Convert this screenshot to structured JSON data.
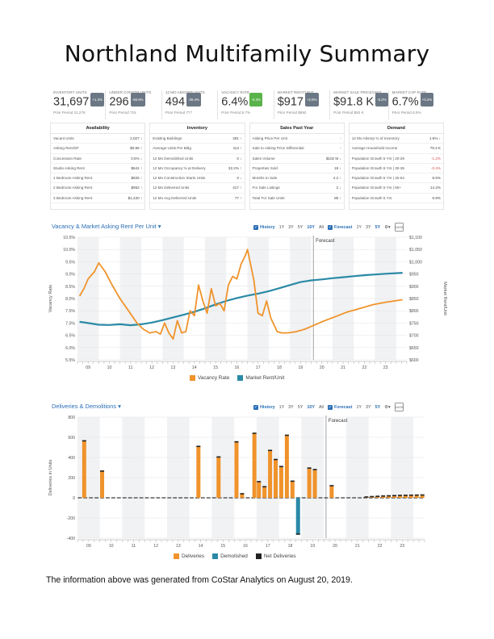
{
  "document": {
    "title": "Northland Multifamily Summary",
    "footer": "The information above was generated from CoStar Analytics on August 20, 2019."
  },
  "kpis": [
    {
      "label": "INVENTORY UNITS",
      "value": "31,697",
      "badge": "+1.3%",
      "prior": "Prior Period 31,278",
      "badge_color": "#6b7784"
    },
    {
      "label": "UNDER CONSTR UNITS",
      "value": "296",
      "badge": "-58.6%",
      "prior": "Prior Period 715",
      "badge_color": "#6b7784"
    },
    {
      "label": "12 MO ABSORP UNITS",
      "value": "494",
      "badge": "-36.4%",
      "prior": "Prior Period 777",
      "badge_color": "#6b7784"
    },
    {
      "label": "VACANCY RATE",
      "value": "6.4%",
      "badge": "-0.3%",
      "prior": "Prior Period 6.7%",
      "badge_color": "#5ab34a"
    },
    {
      "label": "MARKET RENT/UNIT",
      "value": "$917",
      "badge": "+2.8%",
      "prior": "Prior Period $892",
      "badge_color": "#6b7784"
    },
    {
      "label": "MARKET SALE PRICE/UNIT",
      "value": "$91.8 K",
      "badge": "-0.2%",
      "prior": "Prior Period $92 K",
      "badge_color": "#6b7784"
    },
    {
      "label": "MARKET CAP RATE",
      "value": "6.7%",
      "badge": "+0.2%",
      "prior": "Prior Period 6.5%",
      "badge_color": "#6b7784"
    }
  ],
  "panels": [
    {
      "title": "Availability",
      "rows": [
        {
          "label": "Vacant Units",
          "value": "2,027 ↓"
        },
        {
          "label": "Asking Rent/SF",
          "value": "$0.86 ↑"
        },
        {
          "label": "Concession Rate",
          "value": "0.5% ↓"
        },
        {
          "label": "Studio Asking Rent",
          "value": "$641 ↑"
        },
        {
          "label": "1 Bedroom Asking Rent",
          "value": "$825 ↑"
        },
        {
          "label": "2 Bedroom Asking Rent",
          "value": "$952 ↑"
        },
        {
          "label": "3 Bedroom Asking Rent",
          "value": "$1,220 ↑"
        }
      ]
    },
    {
      "title": "Inventory",
      "rows": [
        {
          "label": "Existing Buildings",
          "value": "281 ↑"
        },
        {
          "label": "Average Units Per Bldg",
          "value": "113 ↑"
        },
        {
          "label": "12 Mo Demolished Units",
          "value": "0 ↓"
        },
        {
          "label": "12 Mo Occupancy % at Delivery",
          "value": "32.2% ↑"
        },
        {
          "label": "12 Mo Construction Starts Units",
          "value": "0 ↓"
        },
        {
          "label": "12 Mo Delivered Units",
          "value": "417 ↑"
        },
        {
          "label": "12 Mo Avg Delivered Units",
          "value": "77 ↑"
        }
      ]
    },
    {
      "title": "Sales Past Year",
      "rows": [
        {
          "label": "Asking Price Per Unit",
          "value": "-"
        },
        {
          "label": "Sale to Asking Price Differential",
          "value": "-"
        },
        {
          "label": "Sales Volume",
          "value": "$102 M ↓"
        },
        {
          "label": "Properties Sold",
          "value": "19 ↓"
        },
        {
          "label": "Months to Sale",
          "value": "4.2 ↑"
        },
        {
          "label": "For Sale Listings",
          "value": "2 ↓"
        },
        {
          "label": "Total For Sale Units",
          "value": "85 ↑"
        }
      ]
    },
    {
      "title": "Demand",
      "rows": [
        {
          "label": "12 Mo Absorp % of Inventory",
          "value": "1.6% ↓"
        },
        {
          "label": "Average Household Income",
          "value": "79.3 K"
        },
        {
          "label": "Population Growth 5 Yrs | 20-29",
          "value": "-1.2%",
          "neg": true
        },
        {
          "label": "Population Growth 5 Yrs | 30-39",
          "value": "-0.4%",
          "neg": true
        },
        {
          "label": "Population Growth 5 Yrs | 40-54",
          "value": "8.5%"
        },
        {
          "label": "Population Growth 5 Yrs | 55+",
          "value": "14.2%"
        },
        {
          "label": "Population Growth 5 Yrs",
          "value": "6.9%"
        }
      ]
    }
  ],
  "chart_controls": {
    "history": "History",
    "forecast": "Forecast",
    "all": "All",
    "hist_ranges": [
      "1Y",
      "3Y",
      "5Y",
      "10Y"
    ],
    "fc_ranges": [
      "1Y",
      "3Y",
      "5Y"
    ],
    "data_icon": "DATA",
    "check_icon": "checkbox-icon",
    "gear_icon": "gear-icon"
  },
  "chart_data": [
    {
      "type": "line",
      "title": "Vacancy & Market Asking Rent Per Unit ▾",
      "ylabel": "Vacancy Rate",
      "y2label": "Market Rent/Unit",
      "forecast_label": "Forecast",
      "ylim": [
        5.5,
        10.5
      ],
      "y2lim": [
        600,
        1100
      ],
      "yticks": [
        "5.5%",
        "6.0%",
        "6.5%",
        "7.0%",
        "7.5%",
        "8.0%",
        "8.5%",
        "9.0%",
        "9.5%",
        "10.0%",
        "10.5%"
      ],
      "y2ticks": [
        "$600",
        "$650",
        "$700",
        "$750",
        "$800",
        "$850",
        "$900",
        "$950",
        "$1,000",
        "$1,050",
        "$1,100"
      ],
      "xticks": [
        "09",
        "10",
        "11",
        "12",
        "13",
        "14",
        "15",
        "16",
        "17",
        "18",
        "19",
        "20",
        "21",
        "22",
        "23"
      ],
      "xlim": [
        2008.5,
        2024.0
      ],
      "forecast_x": 2019.6,
      "colors": {
        "vacancy": "#f0932b",
        "rent": "#2a8aa6"
      },
      "series": [
        {
          "name": "Vacancy Rate",
          "axis": "left",
          "points": [
            [
              2008.6,
              8.1
            ],
            [
              2008.8,
              8.4
            ],
            [
              2009.0,
              8.8
            ],
            [
              2009.3,
              9.1
            ],
            [
              2009.5,
              9.45
            ],
            [
              2009.8,
              9.1
            ],
            [
              2010.1,
              8.6
            ],
            [
              2010.5,
              8.0
            ],
            [
              2010.9,
              7.5
            ],
            [
              2011.3,
              7.0
            ],
            [
              2011.6,
              6.75
            ],
            [
              2011.9,
              6.6
            ],
            [
              2012.2,
              6.65
            ],
            [
              2012.4,
              6.55
            ],
            [
              2012.6,
              7.0
            ],
            [
              2012.8,
              6.6
            ],
            [
              2013.0,
              6.35
            ],
            [
              2013.2,
              7.1
            ],
            [
              2013.4,
              6.6
            ],
            [
              2013.6,
              6.65
            ],
            [
              2013.8,
              7.5
            ],
            [
              2014.0,
              7.3
            ],
            [
              2014.2,
              8.55
            ],
            [
              2014.4,
              7.9
            ],
            [
              2014.6,
              7.4
            ],
            [
              2014.8,
              8.4
            ],
            [
              2015.0,
              7.7
            ],
            [
              2015.2,
              7.8
            ],
            [
              2015.4,
              7.5
            ],
            [
              2015.6,
              8.55
            ],
            [
              2015.8,
              8.9
            ],
            [
              2016.0,
              8.8
            ],
            [
              2016.2,
              9.4
            ],
            [
              2016.4,
              9.75
            ],
            [
              2016.5,
              10.0
            ],
            [
              2016.8,
              8.75
            ],
            [
              2017.0,
              7.4
            ],
            [
              2017.2,
              7.3
            ],
            [
              2017.4,
              7.9
            ],
            [
              2017.6,
              7.2
            ],
            [
              2017.9,
              6.65
            ],
            [
              2018.1,
              6.6
            ],
            [
              2018.4,
              6.6
            ],
            [
              2018.8,
              6.65
            ],
            [
              2019.2,
              6.75
            ],
            [
              2019.6,
              6.9
            ],
            [
              2020.0,
              7.05
            ],
            [
              2020.6,
              7.25
            ],
            [
              2021.2,
              7.45
            ],
            [
              2021.8,
              7.6
            ],
            [
              2022.4,
              7.75
            ],
            [
              2023.0,
              7.85
            ],
            [
              2023.8,
              7.95
            ]
          ]
        },
        {
          "name": "Market Rent/Unit",
          "axis": "right",
          "points": [
            [
              2008.6,
              755
            ],
            [
              2009.0,
              750
            ],
            [
              2009.5,
              743
            ],
            [
              2010.0,
              742
            ],
            [
              2010.5,
              745
            ],
            [
              2011.0,
              741
            ],
            [
              2011.5,
              745
            ],
            [
              2012.0,
              752
            ],
            [
              2012.5,
              762
            ],
            [
              2013.0,
              773
            ],
            [
              2013.5,
              784
            ],
            [
              2014.0,
              796
            ],
            [
              2014.5,
              810
            ],
            [
              2015.0,
              826
            ],
            [
              2015.5,
              840
            ],
            [
              2016.0,
              852
            ],
            [
              2016.5,
              862
            ],
            [
              2017.0,
              870
            ],
            [
              2017.5,
              880
            ],
            [
              2018.0,
              892
            ],
            [
              2018.5,
              905
            ],
            [
              2019.0,
              917
            ],
            [
              2019.5,
              924
            ],
            [
              2020.0,
              928
            ],
            [
              2020.5,
              933
            ],
            [
              2021.0,
              937
            ],
            [
              2021.5,
              941
            ],
            [
              2022.0,
              945
            ],
            [
              2022.5,
              948
            ],
            [
              2023.0,
              951
            ],
            [
              2023.8,
              955
            ]
          ]
        }
      ],
      "legend": [
        "Vacancy Rate",
        "Market Rent/Unit"
      ]
    },
    {
      "type": "bar",
      "title": "Deliveries & Demolitions ▾",
      "ylabel": "Deliveries in Units",
      "forecast_label": "Forecast",
      "ylim": [
        -400,
        800
      ],
      "yticks": [
        "-400",
        "-200",
        "0",
        "200",
        "400",
        "600",
        "800"
      ],
      "xticks": [
        "09",
        "10",
        "11",
        "12",
        "13",
        "14",
        "15",
        "16",
        "17",
        "18",
        "19",
        "20",
        "21",
        "22",
        "23"
      ],
      "xlim": [
        2008.5,
        2024.0
      ],
      "forecast_x": 2019.6,
      "colors": {
        "deliveries": "#f0932b",
        "demolished": "#2a8aa6",
        "net": "#222222"
      },
      "series": [
        {
          "name": "Deliveries",
          "bars": [
            [
              2008.8,
              565
            ],
            [
              2009.6,
              265
            ],
            [
              2013.9,
              510
            ],
            [
              2014.8,
              405
            ],
            [
              2015.6,
              555
            ],
            [
              2015.85,
              40
            ],
            [
              2016.4,
              640
            ],
            [
              2016.6,
              160
            ],
            [
              2016.85,
              110
            ],
            [
              2017.1,
              470
            ],
            [
              2017.35,
              380
            ],
            [
              2017.6,
              310
            ],
            [
              2017.85,
              620
            ],
            [
              2018.1,
              165
            ],
            [
              2018.85,
              295
            ],
            [
              2019.1,
              280
            ],
            [
              2019.85,
              120
            ]
          ]
        },
        {
          "name": "Demolished",
          "bars": [
            [
              2018.35,
              -360
            ]
          ]
        },
        {
          "name": "Net Deliveries",
          "bars": [
            [
              2008.8,
              565
            ],
            [
              2009.6,
              265
            ],
            [
              2013.9,
              510
            ],
            [
              2014.8,
              405
            ],
            [
              2015.6,
              555
            ],
            [
              2015.85,
              40
            ],
            [
              2016.4,
              640
            ],
            [
              2016.6,
              160
            ],
            [
              2016.85,
              110
            ],
            [
              2017.1,
              470
            ],
            [
              2017.35,
              380
            ],
            [
              2017.6,
              310
            ],
            [
              2017.85,
              620
            ],
            [
              2018.1,
              165
            ],
            [
              2018.35,
              -360
            ],
            [
              2018.85,
              295
            ],
            [
              2019.1,
              280
            ],
            [
              2019.85,
              120
            ]
          ]
        }
      ],
      "forecast_bars": [
        [
          2021.4,
          8
        ],
        [
          2021.65,
          12
        ],
        [
          2021.9,
          15
        ],
        [
          2022.15,
          18
        ],
        [
          2022.4,
          20
        ],
        [
          2022.65,
          22
        ],
        [
          2022.9,
          24
        ],
        [
          2023.15,
          25
        ],
        [
          2023.4,
          26
        ],
        [
          2023.65,
          27
        ],
        [
          2023.9,
          28
        ]
      ],
      "legend": [
        "Deliveries",
        "Demolished",
        "Net Deliveries"
      ]
    }
  ]
}
